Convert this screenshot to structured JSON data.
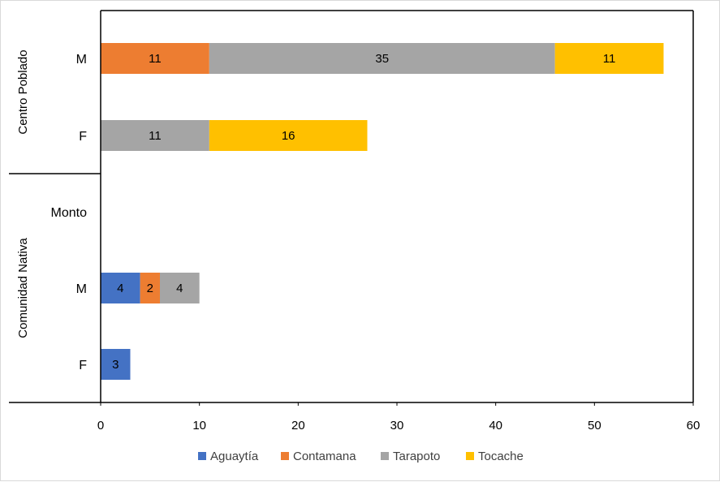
{
  "chart_data": {
    "type": "bar",
    "orientation": "horizontal",
    "stacked": true,
    "title": "",
    "xlabel": "",
    "ylabel": "",
    "xlim": [
      0,
      60
    ],
    "x_ticks": [
      0,
      10,
      20,
      30,
      40,
      50,
      60
    ],
    "grid": false,
    "legend_position": "bottom",
    "groups": [
      {
        "name": "Centro Poblado",
        "categories": [
          "M",
          "F"
        ]
      },
      {
        "name": "Comunidad Nativa",
        "categories": [
          "Monto",
          "M",
          "F"
        ]
      }
    ],
    "categories": [
      "Centro Poblado - M",
      "Centro Poblado - F",
      "Comunidad Nativa - Monto",
      "Comunidad Nativa - M",
      "Comunidad Nativa - F"
    ],
    "series": [
      {
        "name": "Aguaytía",
        "color": "#4472c4",
        "values": [
          null,
          null,
          null,
          4,
          3
        ]
      },
      {
        "name": "Contamana",
        "color": "#ed7d31",
        "values": [
          11,
          null,
          null,
          2,
          null
        ]
      },
      {
        "name": "Tarapoto",
        "color": "#a5a5a5",
        "values": [
          35,
          11,
          null,
          4,
          null
        ]
      },
      {
        "name": "Tocache",
        "color": "#ffc000",
        "values": [
          11,
          16,
          null,
          null,
          null
        ]
      }
    ]
  }
}
